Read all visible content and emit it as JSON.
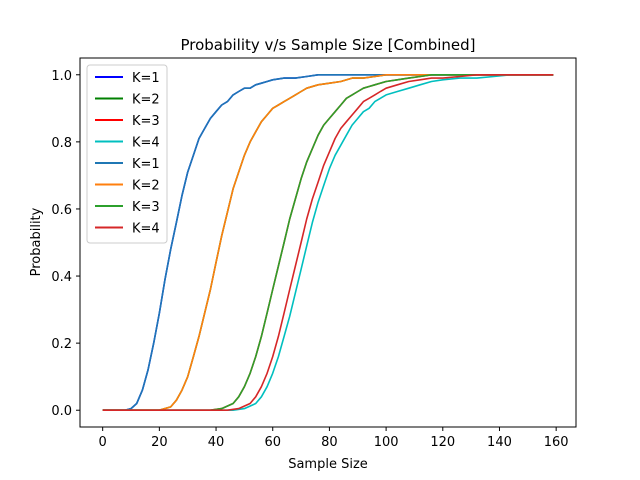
{
  "chart_data": {
    "type": "line",
    "title": "Probability v/s Sample Size [Combined]",
    "xlabel": "Sample Size",
    "ylabel": "Probability",
    "xlim": [
      -8,
      167
    ],
    "ylim": [
      -0.05,
      1.05
    ],
    "xticks": [
      0,
      20,
      40,
      60,
      80,
      100,
      120,
      140,
      160
    ],
    "yticks": [
      0.0,
      0.2,
      0.4,
      0.6,
      0.8,
      1.0
    ],
    "xtick_labels": [
      "0",
      "20",
      "40",
      "60",
      "80",
      "100",
      "120",
      "140",
      "160"
    ],
    "ytick_labels": [
      "0.0",
      "0.2",
      "0.4",
      "0.6",
      "0.8",
      "1.0"
    ],
    "grid": false,
    "legend_position": "top-left",
    "series": [
      {
        "name": "K=1",
        "color": "#0000ff",
        "x": [
          0,
          8,
          10,
          12,
          14,
          16,
          18,
          20,
          22,
          24,
          26,
          28,
          30,
          32,
          34,
          36,
          38,
          40,
          42,
          44,
          46,
          48,
          50,
          52,
          54,
          56,
          58,
          60,
          64,
          68,
          72,
          76,
          80,
          90,
          100,
          120,
          140,
          159
        ],
        "y": [
          0,
          0,
          0.005,
          0.02,
          0.06,
          0.12,
          0.2,
          0.29,
          0.39,
          0.48,
          0.56,
          0.64,
          0.71,
          0.76,
          0.81,
          0.84,
          0.87,
          0.89,
          0.91,
          0.92,
          0.94,
          0.95,
          0.96,
          0.96,
          0.97,
          0.975,
          0.98,
          0.985,
          0.99,
          0.99,
          0.995,
          1.0,
          1.0,
          1.0,
          1.0,
          1.0,
          1.0,
          1.0
        ]
      },
      {
        "name": "K=2",
        "color": "#008000",
        "x": [
          0,
          20,
          24,
          26,
          28,
          30,
          32,
          34,
          36,
          38,
          40,
          42,
          44,
          46,
          48,
          50,
          52,
          54,
          56,
          58,
          60,
          62,
          64,
          66,
          68,
          70,
          72,
          76,
          80,
          84,
          88,
          92,
          96,
          100,
          110,
          120,
          140,
          159
        ],
        "y": [
          0,
          0,
          0.01,
          0.03,
          0.06,
          0.1,
          0.16,
          0.22,
          0.29,
          0.36,
          0.44,
          0.52,
          0.59,
          0.66,
          0.71,
          0.76,
          0.8,
          0.83,
          0.86,
          0.88,
          0.9,
          0.91,
          0.92,
          0.93,
          0.94,
          0.95,
          0.96,
          0.97,
          0.975,
          0.98,
          0.99,
          0.99,
          0.995,
          1.0,
          1.0,
          1.0,
          1.0,
          1.0
        ]
      },
      {
        "name": "K=3",
        "color": "#ff0000",
        "x": [
          0,
          38,
          42,
          46,
          48,
          50,
          52,
          54,
          56,
          58,
          60,
          62,
          64,
          66,
          68,
          70,
          72,
          74,
          76,
          78,
          80,
          82,
          84,
          86,
          88,
          90,
          92,
          94,
          96,
          100,
          104,
          108,
          112,
          116,
          120,
          130,
          140,
          159
        ],
        "y": [
          0,
          0,
          0.005,
          0.02,
          0.04,
          0.07,
          0.11,
          0.16,
          0.22,
          0.29,
          0.36,
          0.43,
          0.5,
          0.57,
          0.63,
          0.69,
          0.74,
          0.78,
          0.82,
          0.85,
          0.87,
          0.89,
          0.91,
          0.93,
          0.94,
          0.95,
          0.96,
          0.965,
          0.97,
          0.98,
          0.985,
          0.99,
          0.995,
          1.0,
          1.0,
          1.0,
          1.0,
          1.0
        ]
      },
      {
        "name": "K=4",
        "color": "#00bfbf",
        "x": [
          0,
          46,
          50,
          54,
          56,
          58,
          60,
          62,
          64,
          66,
          68,
          70,
          72,
          74,
          76,
          78,
          80,
          82,
          84,
          86,
          88,
          90,
          92,
          94,
          96,
          98,
          100,
          104,
          108,
          112,
          116,
          120,
          126,
          132,
          138,
          144,
          150,
          159
        ],
        "y": [
          0,
          0,
          0.005,
          0.02,
          0.04,
          0.07,
          0.11,
          0.16,
          0.22,
          0.28,
          0.35,
          0.42,
          0.49,
          0.56,
          0.62,
          0.67,
          0.72,
          0.76,
          0.79,
          0.82,
          0.85,
          0.87,
          0.89,
          0.9,
          0.92,
          0.93,
          0.94,
          0.95,
          0.96,
          0.97,
          0.98,
          0.985,
          0.99,
          0.99,
          0.995,
          1.0,
          1.0,
          1.0
        ]
      },
      {
        "name": "K=1",
        "color": "#1f77b4",
        "x": [
          0,
          8,
          10,
          12,
          14,
          16,
          18,
          20,
          22,
          24,
          26,
          28,
          30,
          32,
          34,
          36,
          38,
          40,
          42,
          44,
          46,
          48,
          50,
          52,
          54,
          56,
          58,
          60,
          64,
          68,
          72,
          76,
          80,
          90,
          100,
          120,
          140,
          159
        ],
        "y": [
          0,
          0,
          0.005,
          0.02,
          0.06,
          0.12,
          0.2,
          0.29,
          0.39,
          0.48,
          0.56,
          0.64,
          0.71,
          0.76,
          0.81,
          0.84,
          0.87,
          0.89,
          0.91,
          0.92,
          0.94,
          0.95,
          0.96,
          0.96,
          0.97,
          0.975,
          0.98,
          0.985,
          0.99,
          0.99,
          0.995,
          1.0,
          1.0,
          1.0,
          1.0,
          1.0,
          1.0,
          1.0
        ]
      },
      {
        "name": "K=2",
        "color": "#ff7f0e",
        "x": [
          0,
          20,
          24,
          26,
          28,
          30,
          32,
          34,
          36,
          38,
          40,
          42,
          44,
          46,
          48,
          50,
          52,
          54,
          56,
          58,
          60,
          62,
          64,
          66,
          68,
          70,
          72,
          76,
          80,
          84,
          88,
          92,
          96,
          100,
          110,
          120,
          140,
          159
        ],
        "y": [
          0,
          0,
          0.01,
          0.03,
          0.06,
          0.1,
          0.16,
          0.22,
          0.29,
          0.36,
          0.44,
          0.52,
          0.59,
          0.66,
          0.71,
          0.76,
          0.8,
          0.83,
          0.86,
          0.88,
          0.9,
          0.91,
          0.92,
          0.93,
          0.94,
          0.95,
          0.96,
          0.97,
          0.975,
          0.98,
          0.99,
          0.99,
          0.995,
          1.0,
          1.0,
          1.0,
          1.0,
          1.0
        ]
      },
      {
        "name": "K=3",
        "color": "#2ca02c",
        "x": [
          0,
          38,
          42,
          46,
          48,
          50,
          52,
          54,
          56,
          58,
          60,
          62,
          64,
          66,
          68,
          70,
          72,
          74,
          76,
          78,
          80,
          82,
          84,
          86,
          88,
          90,
          92,
          94,
          96,
          100,
          104,
          108,
          112,
          116,
          120,
          130,
          140,
          159
        ],
        "y": [
          0,
          0,
          0.005,
          0.02,
          0.04,
          0.07,
          0.11,
          0.16,
          0.22,
          0.29,
          0.36,
          0.43,
          0.5,
          0.57,
          0.63,
          0.69,
          0.74,
          0.78,
          0.82,
          0.85,
          0.87,
          0.89,
          0.91,
          0.93,
          0.94,
          0.95,
          0.96,
          0.965,
          0.97,
          0.98,
          0.985,
          0.99,
          0.995,
          1.0,
          1.0,
          1.0,
          1.0,
          1.0
        ]
      },
      {
        "name": "K=4",
        "color": "#d62728",
        "x": [
          0,
          44,
          48,
          52,
          54,
          56,
          58,
          60,
          62,
          64,
          66,
          68,
          70,
          72,
          74,
          76,
          78,
          80,
          82,
          84,
          86,
          88,
          90,
          92,
          94,
          96,
          98,
          100,
          104,
          108,
          112,
          116,
          120,
          126,
          132,
          140,
          150,
          159
        ],
        "y": [
          0,
          0,
          0.005,
          0.02,
          0.04,
          0.07,
          0.11,
          0.16,
          0.22,
          0.29,
          0.36,
          0.43,
          0.5,
          0.57,
          0.63,
          0.68,
          0.73,
          0.77,
          0.81,
          0.84,
          0.86,
          0.88,
          0.9,
          0.92,
          0.93,
          0.94,
          0.95,
          0.96,
          0.97,
          0.98,
          0.985,
          0.99,
          0.99,
          0.995,
          1.0,
          1.0,
          1.0,
          1.0
        ]
      }
    ]
  }
}
